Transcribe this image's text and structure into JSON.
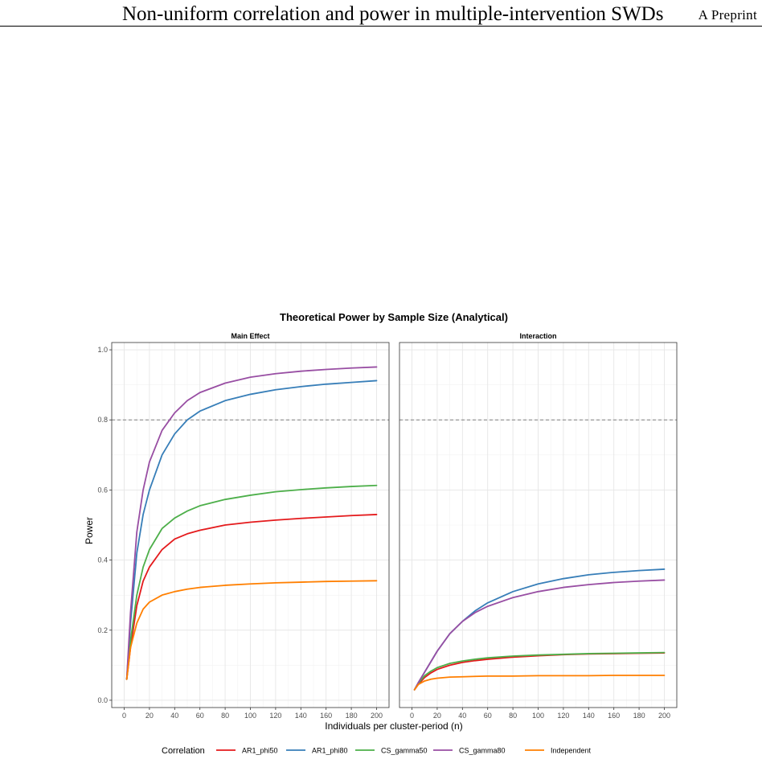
{
  "header": {
    "title": "Non-uniform correlation and power in multiple-intervention SWDs",
    "right": "A Preprint"
  },
  "chart_data": {
    "type": "line",
    "title": "Theoretical Power by Sample Size (Analytical)",
    "xlabel": "Individuals per cluster-period (n)",
    "ylabel": "Power",
    "xlim": [
      0,
      200
    ],
    "ylim": [
      0,
      1.0
    ],
    "x_ticks": [
      0,
      20,
      40,
      60,
      80,
      100,
      120,
      140,
      160,
      180,
      200
    ],
    "y_ticks": [
      0.0,
      0.2,
      0.4,
      0.6,
      0.8,
      1.0
    ],
    "y_tick_labels": [
      "0.0",
      "0.2",
      "0.4",
      "0.6",
      "0.8",
      "1.0"
    ],
    "reference_line": 0.8,
    "grid": true,
    "legend": {
      "title": "Correlation",
      "placement": "bottom",
      "entries": [
        "AR1_phi50",
        "AR1_phi80",
        "CS_gamma50",
        "CS_gamma80",
        "Independent"
      ]
    },
    "colors": {
      "AR1_phi50": "#E41A1C",
      "AR1_phi80": "#377EB8",
      "CS_gamma50": "#4DAF4A",
      "CS_gamma80": "#984EA3",
      "Independent": "#FF7F00"
    },
    "x": [
      2,
      5,
      10,
      15,
      20,
      30,
      40,
      50,
      60,
      80,
      100,
      120,
      140,
      160,
      180,
      200
    ],
    "panels": [
      {
        "title": "Main Effect",
        "series": [
          {
            "name": "AR1_phi50",
            "values": [
              0.06,
              0.15,
              0.27,
              0.34,
              0.38,
              0.43,
              0.46,
              0.475,
              0.485,
              0.5,
              0.508,
              0.514,
              0.519,
              0.523,
              0.527,
              0.53
            ]
          },
          {
            "name": "AR1_phi80",
            "values": [
              0.06,
              0.22,
              0.42,
              0.53,
              0.6,
              0.7,
              0.76,
              0.8,
              0.825,
              0.855,
              0.873,
              0.886,
              0.895,
              0.902,
              0.907,
              0.912
            ]
          },
          {
            "name": "CS_gamma50",
            "values": [
              0.06,
              0.17,
              0.3,
              0.38,
              0.43,
              0.49,
              0.52,
              0.54,
              0.555,
              0.573,
              0.585,
              0.595,
              0.601,
              0.606,
              0.61,
              0.613
            ]
          },
          {
            "name": "CS_gamma80",
            "values": [
              0.06,
              0.25,
              0.48,
              0.6,
              0.68,
              0.77,
              0.82,
              0.855,
              0.878,
              0.905,
              0.922,
              0.932,
              0.939,
              0.944,
              0.948,
              0.951
            ]
          },
          {
            "name": "Independent",
            "values": [
              0.06,
              0.15,
              0.22,
              0.26,
              0.28,
              0.3,
              0.31,
              0.317,
              0.322,
              0.328,
              0.332,
              0.335,
              0.337,
              0.339,
              0.34,
              0.341
            ]
          }
        ]
      },
      {
        "title": "Interaction",
        "series": [
          {
            "name": "AR1_phi50",
            "values": [
              0.03,
              0.045,
              0.065,
              0.078,
              0.088,
              0.1,
              0.108,
              0.113,
              0.117,
              0.123,
              0.127,
              0.13,
              0.132,
              0.133,
              0.134,
              0.135
            ]
          },
          {
            "name": "AR1_phi80",
            "values": [
              0.03,
              0.05,
              0.08,
              0.11,
              0.14,
              0.19,
              0.225,
              0.255,
              0.278,
              0.31,
              0.332,
              0.347,
              0.358,
              0.365,
              0.37,
              0.374
            ]
          },
          {
            "name": "CS_gamma50",
            "values": [
              0.03,
              0.048,
              0.07,
              0.083,
              0.093,
              0.105,
              0.112,
              0.117,
              0.121,
              0.126,
              0.129,
              0.131,
              0.133,
              0.134,
              0.135,
              0.136
            ]
          },
          {
            "name": "CS_gamma80",
            "values": [
              0.03,
              0.05,
              0.08,
              0.11,
              0.14,
              0.19,
              0.225,
              0.25,
              0.268,
              0.293,
              0.31,
              0.322,
              0.33,
              0.336,
              0.34,
              0.343
            ]
          },
          {
            "name": "Independent",
            "values": [
              0.03,
              0.045,
              0.055,
              0.06,
              0.063,
              0.066,
              0.067,
              0.068,
              0.069,
              0.069,
              0.07,
              0.07,
              0.07,
              0.071,
              0.071,
              0.071
            ]
          }
        ]
      }
    ]
  }
}
